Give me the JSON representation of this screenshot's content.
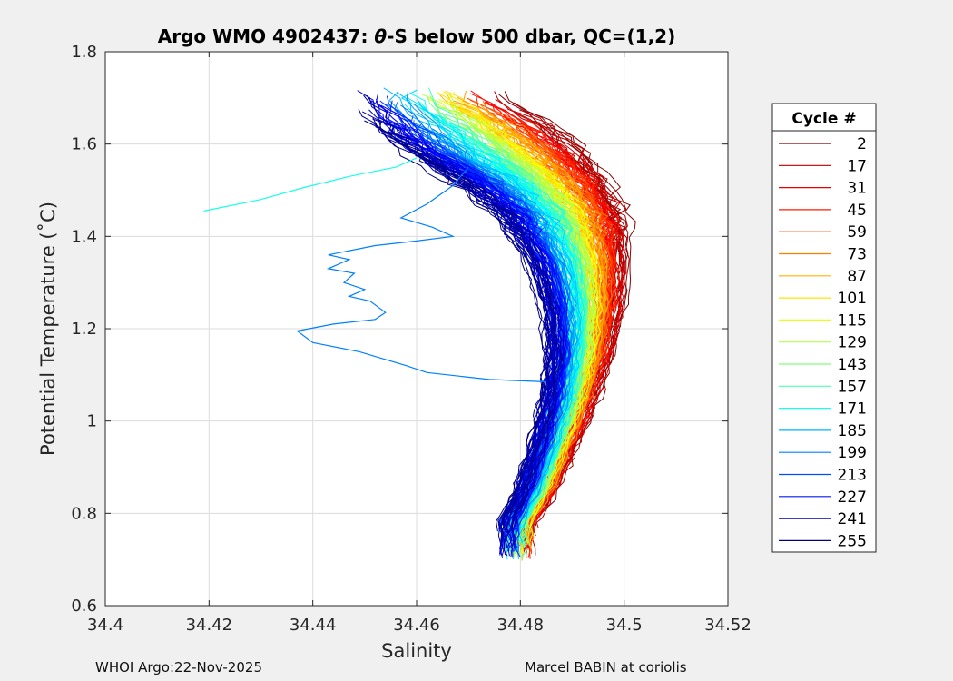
{
  "chart_data": {
    "type": "line",
    "title": "Argo WMO 4902437: θ-S below 500 dbar,  QC=(1,2)",
    "title_parts": [
      "Argo WMO 4902437: ",
      "θ",
      "-S below 500 dbar,  QC=(1,2)"
    ],
    "xlabel": "Salinity",
    "ylabel": "Potential Temperature (˚C)",
    "xlim": [
      34.4,
      34.52
    ],
    "ylim": [
      0.6,
      1.8
    ],
    "xticks": [
      34.4,
      34.42,
      34.44,
      34.46,
      34.48,
      34.5,
      34.52
    ],
    "xtick_labels": [
      "34.4",
      "34.42",
      "34.44",
      "34.46",
      "34.48",
      "34.5",
      "34.52"
    ],
    "yticks": [
      0.6,
      0.8,
      1.0,
      1.2,
      1.4,
      1.6,
      1.8
    ],
    "ytick_labels": [
      "0.6",
      "0.8",
      "1",
      "1.2",
      "1.4",
      "1.6",
      "1.8"
    ],
    "grid": true,
    "legend": {
      "title": "Cycle #",
      "placement": "outside-right",
      "entries": [
        {
          "label": "2",
          "color": "#800000"
        },
        {
          "label": "17",
          "color": "#b30000"
        },
        {
          "label": "31",
          "color": "#e60000"
        },
        {
          "label": "45",
          "color": "#ff1a00"
        },
        {
          "label": "59",
          "color": "#ff4d00"
        },
        {
          "label": "73",
          "color": "#ff8000"
        },
        {
          "label": "87",
          "color": "#ffb300"
        },
        {
          "label": "101",
          "color": "#ffe600"
        },
        {
          "label": "115",
          "color": "#e6ff1a"
        },
        {
          "label": "129",
          "color": "#b3ff4d"
        },
        {
          "label": "143",
          "color": "#80ff80"
        },
        {
          "label": "157",
          "color": "#4dffb3"
        },
        {
          "label": "171",
          "color": "#1affe6"
        },
        {
          "label": "185",
          "color": "#00b3ff"
        },
        {
          "label": "199",
          "color": "#0080ff"
        },
        {
          "label": "213",
          "color": "#004dff"
        },
        {
          "label": "227",
          "color": "#001aff"
        },
        {
          "label": "241",
          "color": "#0000b3"
        },
        {
          "label": "255",
          "color": "#000080"
        }
      ]
    },
    "series_profile": {
      "theta": [
        0.78,
        0.85,
        0.95,
        1.05,
        1.15,
        1.25,
        1.35,
        1.45,
        1.52,
        1.58,
        1.64,
        1.7
      ],
      "salinity_early_cycles": [
        34.482,
        34.486,
        34.49,
        34.494,
        34.497,
        34.499,
        34.5,
        34.499,
        34.496,
        34.492,
        34.486,
        34.476
      ],
      "salinity_late_cycles": [
        34.477,
        34.48,
        34.483,
        34.485,
        34.486,
        34.485,
        34.482,
        34.476,
        34.468,
        34.459,
        34.452,
        34.448
      ]
    },
    "outlier_profiles": [
      {
        "color": "#0080ff",
        "points": [
          [
            34.485,
            1.085
          ],
          [
            34.474,
            1.09
          ],
          [
            34.462,
            1.105
          ],
          [
            34.458,
            1.12
          ],
          [
            34.449,
            1.15
          ],
          [
            34.44,
            1.17
          ],
          [
            34.437,
            1.195
          ],
          [
            34.444,
            1.21
          ],
          [
            34.452,
            1.22
          ],
          [
            34.454,
            1.235
          ],
          [
            34.451,
            1.26
          ],
          [
            34.447,
            1.27
          ],
          [
            34.45,
            1.285
          ],
          [
            34.446,
            1.3
          ],
          [
            34.448,
            1.32
          ],
          [
            34.443,
            1.33
          ],
          [
            34.447,
            1.35
          ],
          [
            34.443,
            1.36
          ],
          [
            34.452,
            1.38
          ],
          [
            34.46,
            1.39
          ],
          [
            34.467,
            1.4
          ],
          [
            34.463,
            1.42
          ],
          [
            34.457,
            1.44
          ],
          [
            34.462,
            1.47
          ],
          [
            34.467,
            1.51
          ],
          [
            34.47,
            1.55
          ]
        ]
      },
      {
        "color": "#1affe6",
        "points": [
          [
            34.419,
            1.455
          ],
          [
            34.43,
            1.48
          ],
          [
            34.438,
            1.505
          ],
          [
            34.447,
            1.53
          ],
          [
            34.456,
            1.55
          ],
          [
            34.46,
            1.57
          ]
        ]
      }
    ]
  },
  "footer": {
    "left": "WHOI Argo:22-Nov-2025",
    "right": "Marcel BABIN at coriolis"
  }
}
